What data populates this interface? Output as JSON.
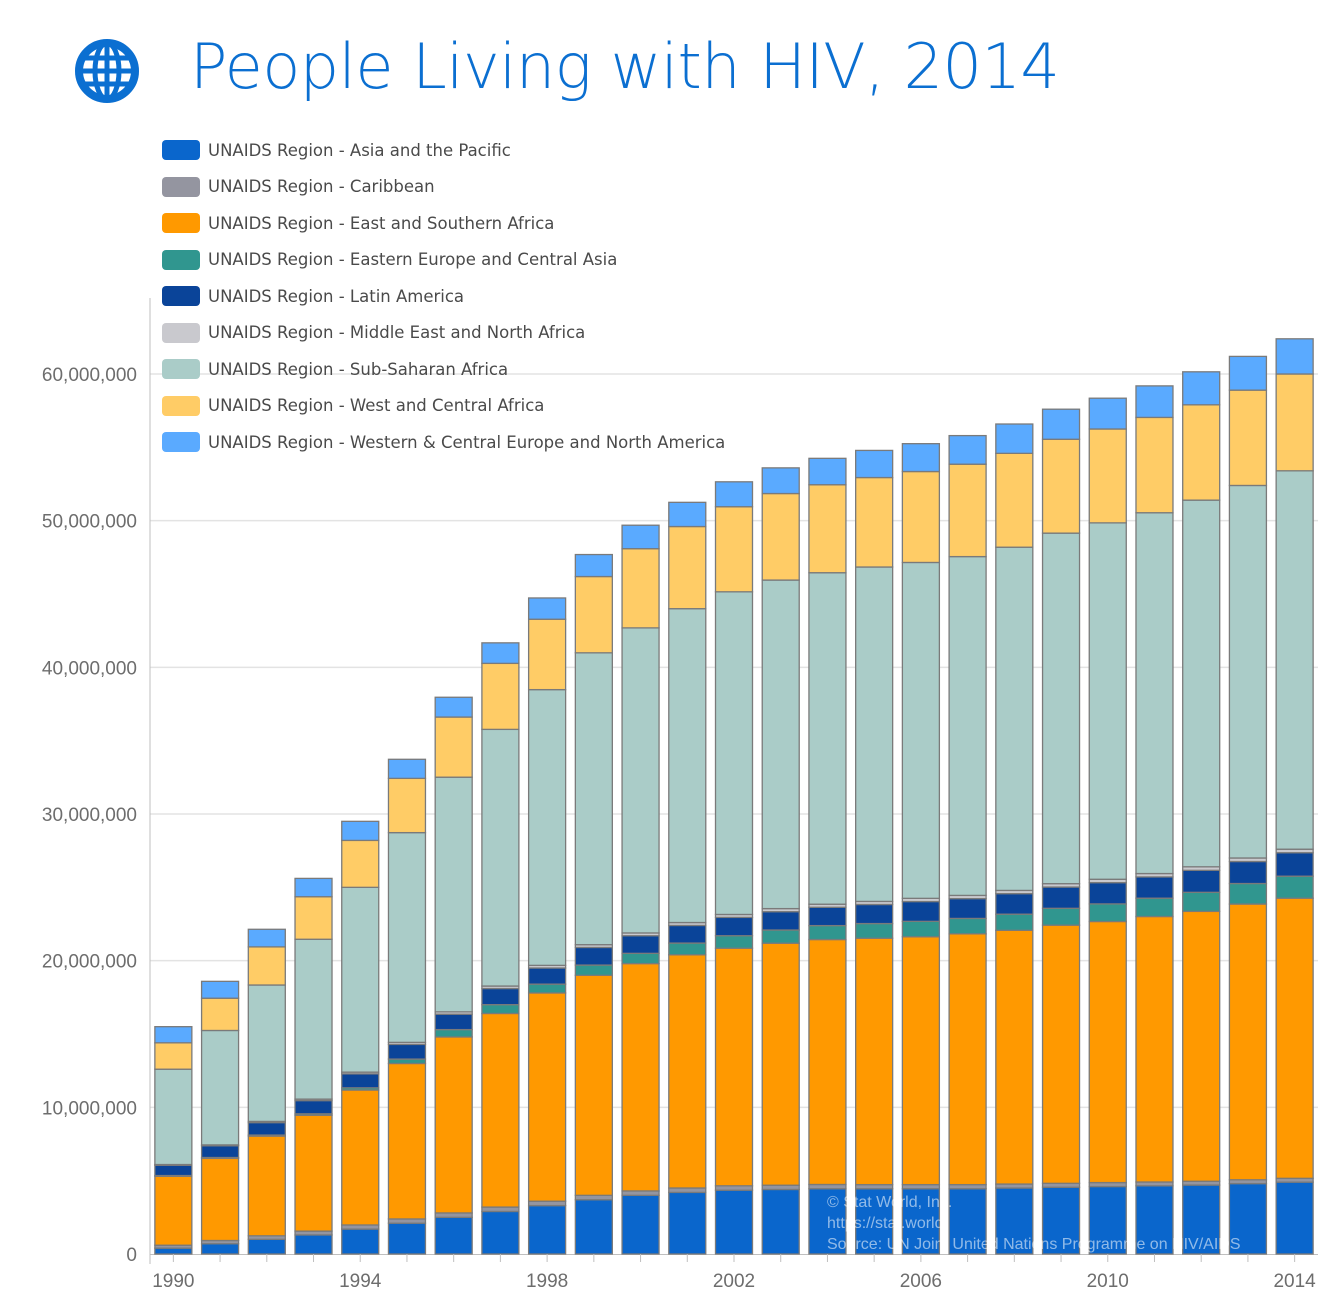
{
  "title": "People Living with HIV, 2014",
  "icon": "globe-icon",
  "colors": {
    "title": "#0b6fd1",
    "grid": "#e3e3e3",
    "axis_text": "#6d6d6d",
    "bar_border": "#7a7a7a"
  },
  "credit": {
    "line1": "© Stat World, Inc.",
    "line2": "https://stat.world",
    "line3": "Source: UN Joint United Nations Programme on HIV/AIDS"
  },
  "chart_data": {
    "type": "bar",
    "stacked": true,
    "title": "People Living with HIV, 2014",
    "xlabel": "",
    "ylabel": "",
    "ylim": [
      0,
      65000000
    ],
    "yticks": [
      0,
      10000000,
      20000000,
      30000000,
      40000000,
      50000000,
      60000000
    ],
    "ytick_labels": [
      "0",
      "10,000,000",
      "20,000,000",
      "30,000,000",
      "40,000,000",
      "50,000,000",
      "60,000,000"
    ],
    "xtick_labels": [
      "1990",
      "1994",
      "1998",
      "2002",
      "2006",
      "2010",
      "2014"
    ],
    "grid": true,
    "legend_position": "top-left",
    "categories": [
      "1990",
      "1991",
      "1992",
      "1993",
      "1994",
      "1995",
      "1996",
      "1997",
      "1998",
      "1999",
      "2000",
      "2001",
      "2002",
      "2003",
      "2004",
      "2005",
      "2006",
      "2007",
      "2008",
      "2009",
      "2010",
      "2011",
      "2012",
      "2013",
      "2014"
    ],
    "series": [
      {
        "name": "UNAIDS Region - Asia and the Pacific",
        "color": "#0a66cc",
        "values": [
          400000,
          700000,
          1000000,
          1300000,
          1700000,
          2100000,
          2500000,
          2900000,
          3300000,
          3700000,
          4000000,
          4200000,
          4350000,
          4400000,
          4450000,
          4450000,
          4450000,
          4450000,
          4500000,
          4550000,
          4600000,
          4650000,
          4700000,
          4800000,
          4900000
        ]
      },
      {
        "name": "UNAIDS Region - Caribbean",
        "color": "#9495a0",
        "values": [
          200000,
          220000,
          240000,
          260000,
          280000,
          290000,
          300000,
          300000,
          300000,
          300000,
          300000,
          300000,
          300000,
          290000,
          290000,
          280000,
          280000,
          280000,
          270000,
          270000,
          270000,
          260000,
          260000,
          260000,
          260000
        ]
      },
      {
        "name": "UNAIDS Region - East and Southern Africa",
        "color": "#ff9900",
        "values": [
          4700000,
          5600000,
          6800000,
          7900000,
          9200000,
          10600000,
          12000000,
          13200000,
          14200000,
          15000000,
          15500000,
          15900000,
          16200000,
          16500000,
          16700000,
          16800000,
          16900000,
          17100000,
          17300000,
          17600000,
          17800000,
          18100000,
          18400000,
          18800000,
          19100000
        ]
      },
      {
        "name": "UNAIDS Region - Eastern Europe and Central Asia",
        "color": "#30968f",
        "values": [
          50000,
          60000,
          70000,
          100000,
          150000,
          300000,
          500000,
          600000,
          600000,
          700000,
          700000,
          800000,
          850000,
          900000,
          950000,
          1000000,
          1050000,
          1050000,
          1100000,
          1150000,
          1200000,
          1250000,
          1300000,
          1400000,
          1500000
        ]
      },
      {
        "name": "UNAIDS Region - Latin America",
        "color": "#0a4499",
        "values": [
          700000,
          800000,
          850000,
          900000,
          950000,
          1000000,
          1050000,
          1100000,
          1100000,
          1200000,
          1200000,
          1200000,
          1250000,
          1250000,
          1250000,
          1300000,
          1350000,
          1350000,
          1400000,
          1450000,
          1450000,
          1450000,
          1500000,
          1500000,
          1600000
        ]
      },
      {
        "name": "UNAIDS Region - Middle East and North Africa",
        "color": "#c9c9ce",
        "values": [
          50000,
          60000,
          80000,
          100000,
          120000,
          140000,
          160000,
          170000,
          180000,
          190000,
          190000,
          200000,
          200000,
          210000,
          210000,
          210000,
          220000,
          220000,
          220000,
          230000,
          230000,
          230000,
          240000,
          240000,
          240000
        ]
      },
      {
        "name": "UNAIDS Region - Sub-Saharan Africa",
        "color": "#aaccc8",
        "values": [
          6500000,
          7800000,
          9300000,
          10900000,
          12600000,
          14300000,
          16000000,
          17500000,
          18800000,
          19900000,
          20800000,
          21400000,
          22000000,
          22400000,
          22600000,
          22800000,
          22900000,
          23100000,
          23400000,
          23900000,
          24300000,
          24600000,
          25000000,
          25400000,
          25800000
        ]
      },
      {
        "name": "UNAIDS Region - West and Central Africa",
        "color": "#ffcc66",
        "values": [
          1800000,
          2200000,
          2600000,
          2900000,
          3200000,
          3700000,
          4100000,
          4500000,
          4800000,
          5200000,
          5400000,
          5600000,
          5800000,
          5900000,
          6000000,
          6100000,
          6200000,
          6300000,
          6400000,
          6400000,
          6400000,
          6500000,
          6500000,
          6500000,
          6600000
        ]
      },
      {
        "name": "UNAIDS Region - Western & Central Europe and North America",
        "color": "#5aaaff",
        "values": [
          1100000,
          1150000,
          1200000,
          1250000,
          1300000,
          1300000,
          1350000,
          1400000,
          1450000,
          1500000,
          1600000,
          1650000,
          1700000,
          1750000,
          1800000,
          1850000,
          1900000,
          1950000,
          2000000,
          2050000,
          2100000,
          2150000,
          2250000,
          2300000,
          2400000
        ]
      }
    ]
  }
}
